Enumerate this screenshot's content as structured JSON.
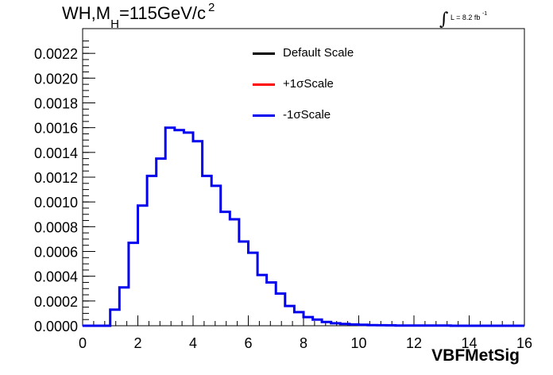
{
  "title": {
    "main": "WH,M",
    "sub": "H",
    "rest": "=115GeV/c",
    "sup": "2"
  },
  "lumi": {
    "label": "L = 8.2 fb",
    "sup": "-1"
  },
  "legend": [
    {
      "label": "Default Scale",
      "color": "#000000"
    },
    {
      "label": "+1σScale",
      "color": "#ff0000"
    },
    {
      "label": "-1σScale",
      "color": "#0000ee"
    }
  ],
  "chart_data": {
    "type": "line",
    "subtype": "step-histogram",
    "xlabel": "VBFMetSig",
    "ylabel": "",
    "xlim": [
      0,
      16
    ],
    "ylim": [
      0,
      0.0024
    ],
    "xticks": [
      "0",
      "2",
      "4",
      "6",
      "8",
      "10",
      "12",
      "14",
      "16"
    ],
    "yticks": [
      "0.0000",
      "0.0002",
      "0.0004",
      "0.0006",
      "0.0008",
      "0.0010",
      "0.0012",
      "0.0014",
      "0.0016",
      "0.0018",
      "0.0020",
      "0.0022"
    ],
    "bin_width": 0.3333,
    "bin_edges_start": 0,
    "series": [
      {
        "name": "-1σScale",
        "color": "#0000ee",
        "values": [
          0,
          0,
          0,
          0.00013,
          0.00031,
          0.00067,
          0.00097,
          0.00121,
          0.00135,
          0.0016,
          0.00158,
          0.00156,
          0.00149,
          0.00121,
          0.00113,
          0.00092,
          0.00086,
          0.00068,
          0.00059,
          0.00041,
          0.00035,
          0.00026,
          0.00016,
          0.00011,
          7e-05,
          5e-05,
          3e-05,
          2e-05,
          1.5e-05,
          1e-05,
          8e-06,
          5e-06,
          4e-06,
          3e-06,
          2e-06,
          2e-06,
          1e-06,
          1e-06,
          1e-06,
          1e-06,
          0,
          0,
          0,
          0,
          0,
          0,
          0,
          0
        ]
      }
    ]
  }
}
